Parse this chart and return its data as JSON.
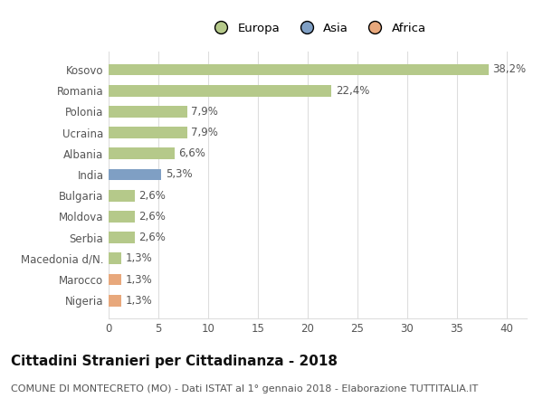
{
  "categories": [
    "Kosovo",
    "Romania",
    "Polonia",
    "Ucraina",
    "Albania",
    "India",
    "Bulgaria",
    "Moldova",
    "Serbia",
    "Macedonia d/N.",
    "Marocco",
    "Nigeria"
  ],
  "values": [
    38.2,
    22.4,
    7.9,
    7.9,
    6.6,
    5.3,
    2.6,
    2.6,
    2.6,
    1.3,
    1.3,
    1.3
  ],
  "labels": [
    "38,2%",
    "22,4%",
    "7,9%",
    "7,9%",
    "6,6%",
    "5,3%",
    "2,6%",
    "2,6%",
    "2,6%",
    "1,3%",
    "1,3%",
    "1,3%"
  ],
  "colors": [
    "#b5c98a",
    "#b5c98a",
    "#b5c98a",
    "#b5c98a",
    "#b5c98a",
    "#7f9fc4",
    "#b5c98a",
    "#b5c98a",
    "#b5c98a",
    "#b5c98a",
    "#e8a87c",
    "#e8a87c"
  ],
  "legend": [
    {
      "label": "Europa",
      "color": "#b5c98a"
    },
    {
      "label": "Asia",
      "color": "#7f9fc4"
    },
    {
      "label": "Africa",
      "color": "#e8a87c"
    }
  ],
  "xlim": [
    0,
    42
  ],
  "xticks": [
    0,
    5,
    10,
    15,
    20,
    25,
    30,
    35,
    40
  ],
  "title": "Cittadini Stranieri per Cittadinanza - 2018",
  "subtitle": "COMUNE DI MONTECRETO (MO) - Dati ISTAT al 1° gennaio 2018 - Elaborazione TUTTITALIA.IT",
  "bg_color": "#ffffff",
  "bar_height": 0.55,
  "grid_color": "#dddddd",
  "tick_label_fontsize": 8.5,
  "value_label_fontsize": 8.5,
  "title_fontsize": 11,
  "subtitle_fontsize": 8,
  "legend_fontsize": 9.5
}
